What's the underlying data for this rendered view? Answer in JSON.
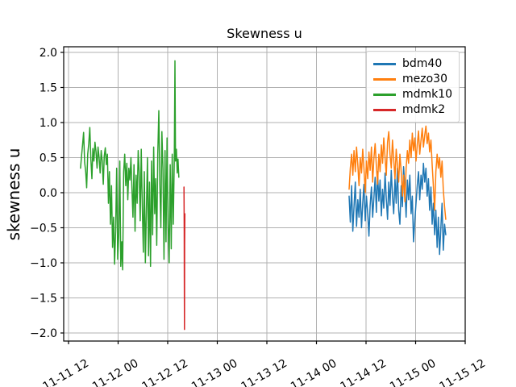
{
  "figure": {
    "background": "#ffffff",
    "frame_color": "#000000",
    "grid_color": "#b0b0b0",
    "text_color": "#000000"
  },
  "chart_data": {
    "type": "line",
    "title": "Skewness u",
    "xlabel": "",
    "ylabel": "skewness u",
    "grid": true,
    "legend_position": "upper right",
    "ylim": [
      -2.1,
      2.1
    ],
    "xlim_hours": [
      -1.2,
      96
    ],
    "y_ticks": [
      -2.0,
      -1.5,
      -1.0,
      -0.5,
      0.0,
      0.5,
      1.0,
      1.5,
      2.0
    ],
    "y_tick_labels": [
      "−2.0",
      "−1.5",
      "−1.0",
      "−0.5",
      "0.0",
      "0.5",
      "1.0",
      "1.5",
      "2.0"
    ],
    "x_tick_hours": [
      0,
      12,
      24,
      36,
      48,
      60,
      72,
      84,
      96
    ],
    "x_tick_labels": [
      "11-11 12",
      "11-12 00",
      "11-12 12",
      "11-13 00",
      "11-13 12",
      "11-14 00",
      "11-14 12",
      "11-15 00",
      "11-15 12"
    ],
    "series": [
      {
        "name": "bdm40",
        "color": "#1f77b4",
        "points": [
          [
            67.9,
            -0.05
          ],
          [
            68.2,
            -0.42
          ],
          [
            68.5,
            0.1
          ],
          [
            68.8,
            -0.55
          ],
          [
            69.1,
            -0.2
          ],
          [
            69.4,
            0.15
          ],
          [
            69.7,
            -0.48
          ],
          [
            70.0,
            -0.1
          ],
          [
            70.3,
            -0.35
          ],
          [
            70.6,
            0.05
          ],
          [
            70.9,
            -0.5
          ],
          [
            71.2,
            -0.15
          ],
          [
            71.5,
            0.12
          ],
          [
            71.8,
            -0.4
          ],
          [
            72.1,
            -0.05
          ],
          [
            72.4,
            -0.3
          ],
          [
            72.7,
            -0.62
          ],
          [
            73.0,
            -0.18
          ],
          [
            73.3,
            0.08
          ],
          [
            73.6,
            -0.35
          ],
          [
            73.9,
            -0.08
          ],
          [
            74.2,
            0.22
          ],
          [
            74.5,
            -0.28
          ],
          [
            74.8,
            0.3
          ],
          [
            75.1,
            -0.12
          ],
          [
            75.4,
            0.18
          ],
          [
            75.7,
            -0.33
          ],
          [
            76.0,
            0.05
          ],
          [
            76.3,
            -0.22
          ],
          [
            76.6,
            0.28
          ],
          [
            76.9,
            -0.08
          ],
          [
            77.2,
            -0.38
          ],
          [
            77.5,
            0.15
          ],
          [
            77.8,
            -0.18
          ],
          [
            78.1,
            0.32
          ],
          [
            78.4,
            -0.05
          ],
          [
            78.7,
            -0.3
          ],
          [
            79.0,
            0.2
          ],
          [
            79.3,
            -0.15
          ],
          [
            79.6,
            0.35
          ],
          [
            79.9,
            -0.25
          ],
          [
            80.2,
            -0.45
          ],
          [
            80.5,
            0.1
          ],
          [
            80.8,
            -0.2
          ],
          [
            81.1,
            0.37
          ],
          [
            81.4,
            0.05
          ],
          [
            81.7,
            -0.35
          ],
          [
            82.0,
            0.18
          ],
          [
            82.3,
            -0.1
          ],
          [
            82.6,
            0.25
          ],
          [
            82.9,
            -0.3
          ],
          [
            83.2,
            -0.05
          ],
          [
            83.5,
            -0.7
          ],
          [
            83.8,
            -0.4
          ],
          [
            84.1,
            -0.15
          ],
          [
            84.4,
            0.1
          ],
          [
            84.7,
            0.3
          ],
          [
            85.0,
            -0.1
          ],
          [
            85.3,
            0.25
          ],
          [
            85.6,
            0.05
          ],
          [
            85.9,
            0.42
          ],
          [
            86.2,
            0.15
          ],
          [
            86.5,
            0.35
          ],
          [
            86.8,
            -0.05
          ],
          [
            87.1,
            0.2
          ],
          [
            87.4,
            -0.25
          ],
          [
            87.7,
            0.08
          ],
          [
            88.0,
            -0.45
          ],
          [
            88.3,
            -0.15
          ],
          [
            88.6,
            -0.6
          ],
          [
            88.9,
            -0.25
          ],
          [
            89.2,
            -0.78
          ],
          [
            89.5,
            -0.35
          ],
          [
            89.8,
            -0.88
          ],
          [
            90.1,
            -0.5
          ],
          [
            90.4,
            -0.15
          ],
          [
            90.7,
            -0.82
          ],
          [
            91.0,
            -0.45
          ],
          [
            91.3,
            -0.6
          ]
        ]
      },
      {
        "name": "mezo30",
        "color": "#ff7f0e",
        "points": [
          [
            67.9,
            0.05
          ],
          [
            68.2,
            0.35
          ],
          [
            68.5,
            0.55
          ],
          [
            68.8,
            0.25
          ],
          [
            69.1,
            0.6
          ],
          [
            69.4,
            0.3
          ],
          [
            69.7,
            0.65
          ],
          [
            70.0,
            0.4
          ],
          [
            70.3,
            0.1
          ],
          [
            70.6,
            0.5
          ],
          [
            70.9,
            0.28
          ],
          [
            71.2,
            0.62
          ],
          [
            71.5,
            0.35
          ],
          [
            71.8,
            0.0
          ],
          [
            72.1,
            0.45
          ],
          [
            72.4,
            0.2
          ],
          [
            72.7,
            0.58
          ],
          [
            73.0,
            0.32
          ],
          [
            73.3,
            0.65
          ],
          [
            73.6,
            0.15
          ],
          [
            73.9,
            0.48
          ],
          [
            74.2,
            0.7
          ],
          [
            74.5,
            0.38
          ],
          [
            74.8,
            0.12
          ],
          [
            75.1,
            0.55
          ],
          [
            75.4,
            0.3
          ],
          [
            75.7,
            0.68
          ],
          [
            76.0,
            0.42
          ],
          [
            76.3,
            0.78
          ],
          [
            76.6,
            0.5
          ],
          [
            76.9,
            0.25
          ],
          [
            77.2,
            0.72
          ],
          [
            77.5,
            0.87
          ],
          [
            77.8,
            0.55
          ],
          [
            78.1,
            0.35
          ],
          [
            78.4,
            0.75
          ],
          [
            78.7,
            0.48
          ],
          [
            79.0,
            0.2
          ],
          [
            79.3,
            0.62
          ],
          [
            79.6,
            0.4
          ],
          [
            79.9,
            0.15
          ],
          [
            80.2,
            0.55
          ],
          [
            80.5,
            0.3
          ],
          [
            80.8,
            -0.05
          ],
          [
            81.1,
            0.25
          ],
          [
            81.4,
            -0.13
          ],
          [
            81.7,
            0.35
          ],
          [
            82.0,
            0.6
          ],
          [
            82.3,
            0.42
          ],
          [
            82.6,
            0.75
          ],
          [
            82.9,
            0.5
          ],
          [
            83.2,
            0.85
          ],
          [
            83.5,
            0.6
          ],
          [
            83.8,
            0.78
          ],
          [
            84.1,
            0.45
          ],
          [
            84.4,
            0.68
          ],
          [
            84.7,
            0.88
          ],
          [
            85.0,
            0.55
          ],
          [
            85.3,
            0.75
          ],
          [
            85.6,
            0.92
          ],
          [
            85.9,
            0.65
          ],
          [
            86.2,
            0.82
          ],
          [
            86.5,
            0.95
          ],
          [
            86.8,
            0.7
          ],
          [
            87.1,
            0.85
          ],
          [
            87.4,
            0.58
          ],
          [
            87.7,
            0.75
          ],
          [
            88.0,
            0.4
          ],
          [
            88.3,
            0.1
          ],
          [
            88.6,
            -0.25
          ],
          [
            88.9,
            0.3
          ],
          [
            89.2,
            0.55
          ],
          [
            89.5,
            0.35
          ],
          [
            89.8,
            0.5
          ],
          [
            90.1,
            0.22
          ],
          [
            90.4,
            0.45
          ],
          [
            90.7,
            0.05
          ],
          [
            91.0,
            -0.2
          ],
          [
            91.3,
            -0.38
          ]
        ]
      },
      {
        "name": "mdmk10",
        "color": "#2ca02c",
        "points": [
          [
            2.9,
            0.35
          ],
          [
            3.15,
            0.52
          ],
          [
            3.4,
            0.68
          ],
          [
            3.65,
            0.86
          ],
          [
            3.9,
            0.43
          ],
          [
            4.15,
            0.3
          ],
          [
            4.4,
            0.07
          ],
          [
            4.65,
            0.55
          ],
          [
            4.9,
            0.7
          ],
          [
            5.15,
            0.93
          ],
          [
            5.4,
            0.48
          ],
          [
            5.65,
            0.2
          ],
          [
            5.9,
            0.63
          ],
          [
            6.15,
            0.45
          ],
          [
            6.4,
            0.72
          ],
          [
            6.65,
            0.58
          ],
          [
            6.9,
            0.35
          ],
          [
            7.15,
            0.65
          ],
          [
            7.4,
            0.5
          ],
          [
            7.65,
            0.28
          ],
          [
            7.9,
            0.6
          ],
          [
            8.15,
            0.45
          ],
          [
            8.4,
            0.12
          ],
          [
            8.65,
            0.52
          ],
          [
            8.9,
            0.64
          ],
          [
            9.15,
            0.4
          ],
          [
            9.4,
            0.55
          ],
          [
            9.65,
            -0.15
          ],
          [
            9.9,
            0.3
          ],
          [
            10.15,
            -0.45
          ],
          [
            10.4,
            0.1
          ],
          [
            10.65,
            -0.78
          ],
          [
            10.9,
            -0.35
          ],
          [
            11.15,
            -1.02
          ],
          [
            11.4,
            -0.55
          ],
          [
            11.65,
            0.35
          ],
          [
            11.9,
            -0.95
          ],
          [
            12.15,
            -0.6
          ],
          [
            12.4,
            0.45
          ],
          [
            12.65,
            -1.05
          ],
          [
            12.9,
            -0.7
          ],
          [
            13.1,
            -1.1
          ],
          [
            13.35,
            0.3
          ],
          [
            13.6,
            0.55
          ],
          [
            13.85,
            0.1
          ],
          [
            14.1,
            0.42
          ],
          [
            14.35,
            -0.1
          ],
          [
            14.6,
            0.35
          ],
          [
            14.85,
            0.18
          ],
          [
            15.1,
            0.5
          ],
          [
            15.35,
            0.05
          ],
          [
            15.6,
            -0.35
          ],
          [
            15.85,
            0.4
          ],
          [
            16.1,
            -0.55
          ],
          [
            16.35,
            0.25
          ],
          [
            16.6,
            -0.15
          ],
          [
            16.85,
            0.6
          ],
          [
            17.1,
            0.3
          ],
          [
            17.35,
            -0.4
          ],
          [
            17.6,
            0.62
          ],
          [
            17.85,
            -0.2
          ],
          [
            18.1,
            -0.85
          ],
          [
            18.35,
            0.3
          ],
          [
            18.6,
            -1.0
          ],
          [
            18.85,
            -0.25
          ],
          [
            19.1,
            0.5
          ],
          [
            19.35,
            -0.9
          ],
          [
            19.6,
            0.15
          ],
          [
            19.85,
            -1.05
          ],
          [
            20.1,
            0.45
          ],
          [
            20.35,
            -0.6
          ],
          [
            20.6,
            0.65
          ],
          [
            20.85,
            -0.3
          ],
          [
            21.1,
            0.2
          ],
          [
            21.35,
            -0.75
          ],
          [
            21.6,
            0.55
          ],
          [
            21.85,
            1.17
          ],
          [
            22.1,
            0.1
          ],
          [
            22.35,
            -0.5
          ],
          [
            22.6,
            0.87
          ],
          [
            22.85,
            0.35
          ],
          [
            23.1,
            -0.95
          ],
          [
            23.35,
            0.6
          ],
          [
            23.6,
            -0.7
          ],
          [
            23.85,
            0.78
          ],
          [
            24.1,
            -0.45
          ],
          [
            24.35,
            -1.0
          ],
          [
            24.6,
            0.4
          ],
          [
            24.85,
            -0.8
          ],
          [
            25.1,
            0.55
          ],
          [
            25.35,
            -0.45
          ],
          [
            25.6,
            0.5
          ],
          [
            25.75,
            1.88
          ],
          [
            25.9,
            0.45
          ],
          [
            26.1,
            0.62
          ],
          [
            26.3,
            0.28
          ],
          [
            26.5,
            0.48
          ],
          [
            26.7,
            0.22
          ]
        ]
      },
      {
        "name": "mdmk2",
        "color": "#d62728",
        "points": [
          [
            27.95,
            0.08
          ],
          [
            28.0,
            -0.55
          ],
          [
            28.02,
            -1.2
          ],
          [
            28.05,
            -1.95
          ],
          [
            28.08,
            -1.4
          ],
          [
            28.1,
            -0.75
          ],
          [
            28.15,
            -0.3
          ]
        ]
      }
    ]
  },
  "legend": {
    "items": [
      {
        "label": "bdm40",
        "color": "#1f77b4"
      },
      {
        "label": "mezo30",
        "color": "#ff7f0e"
      },
      {
        "label": "mdmk10",
        "color": "#2ca02c"
      },
      {
        "label": "mdmk2",
        "color": "#d62728"
      }
    ]
  }
}
